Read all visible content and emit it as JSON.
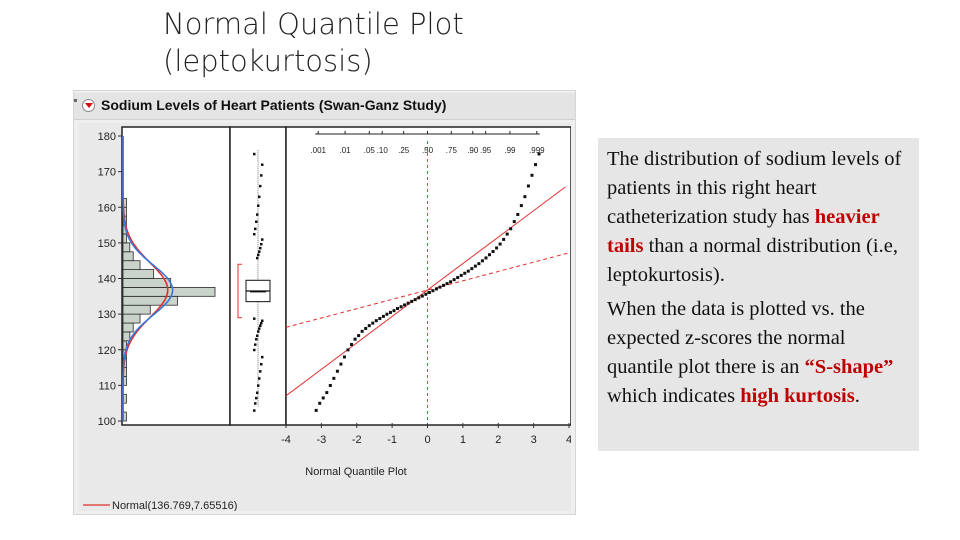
{
  "slide": {
    "title_line1": "Normal Quantile Plot",
    "title_line2": "(leptokurtosis)"
  },
  "window": {
    "title": "Sodium Levels of Heart Patients (Swan-Ganz Study)",
    "legend_label": "Normal(136.769,7.65516)",
    "legend_color": "#e03030"
  },
  "explanation": {
    "p1_text1": "The distribution of sodium levels of patients in this right heart catheterization study has ",
    "p1_highlight1": "heavier tails",
    "p1_text2": " than a normal distribution (i.e, leptokurtosis).",
    "p2_text1": "When the data is plotted vs. the expected z-scores the normal quantile plot there is an ",
    "p2_highlight1": "“S-shape”",
    "p2_text2": " which indicates ",
    "p2_highlight2": "high kurtosis",
    "p2_text3": ".",
    "highlight_color": "#c00000"
  },
  "chart_data": {
    "type": "scatter",
    "ylim": [
      100,
      180
    ],
    "yticks": [
      "100",
      "110",
      "120",
      "130",
      "140",
      "150",
      "160",
      "170",
      "180"
    ],
    "xlim": [
      -4,
      4
    ],
    "xticks": [
      "-4",
      "-3",
      "-2",
      "-1",
      "0",
      "1",
      "2",
      "3",
      "4"
    ],
    "xlabel": "Normal Quantile Plot",
    "prob_ticks": [
      ".001",
      ".01",
      ".05",
      ".10",
      ".25",
      ".50",
      ".75",
      ".90",
      ".95",
      ".99",
      ".999"
    ],
    "prob_z": [
      -3.09,
      -2.33,
      -1.645,
      -1.28,
      -0.674,
      0,
      0.674,
      1.28,
      1.645,
      2.33,
      3.09
    ],
    "normal_fit": {
      "mean": 136.769,
      "sd": 7.65516
    },
    "histogram": {
      "bin_width": 2.5,
      "bins": [
        {
          "low": 100,
          "count": 1
        },
        {
          "low": 102.5,
          "count": 0
        },
        {
          "low": 105,
          "count": 1
        },
        {
          "low": 107.5,
          "count": 0
        },
        {
          "low": 110,
          "count": 1
        },
        {
          "low": 112.5,
          "count": 1
        },
        {
          "low": 115,
          "count": 1
        },
        {
          "low": 117.5,
          "count": 1
        },
        {
          "low": 120,
          "count": 1
        },
        {
          "low": 122.5,
          "count": 2
        },
        {
          "low": 125,
          "count": 3
        },
        {
          "low": 127.5,
          "count": 5
        },
        {
          "low": 130,
          "count": 8
        },
        {
          "low": 132.5,
          "count": 16
        },
        {
          "low": 135,
          "count": 27
        },
        {
          "low": 137.5,
          "count": 14
        },
        {
          "low": 140,
          "count": 9
        },
        {
          "low": 142.5,
          "count": 5
        },
        {
          "low": 145,
          "count": 3
        },
        {
          "low": 147.5,
          "count": 2
        },
        {
          "low": 150,
          "count": 1
        },
        {
          "low": 152.5,
          "count": 1
        },
        {
          "low": 155,
          "count": 1
        },
        {
          "low": 157.5,
          "count": 1
        },
        {
          "low": 160,
          "count": 1
        }
      ]
    },
    "boxplot": {
      "q1": 133.5,
      "median": 136.5,
      "q3": 139.5,
      "mean": 136.8,
      "shortest_half": [
        129,
        144
      ]
    },
    "series": [
      {
        "points": [
          [
            -3.15,
            103
          ],
          [
            -3.05,
            105
          ],
          [
            -2.95,
            106.5
          ],
          [
            -2.85,
            108
          ],
          [
            -2.75,
            110
          ],
          [
            -2.65,
            112
          ],
          [
            -2.55,
            114
          ],
          [
            -2.45,
            116
          ],
          [
            -2.35,
            118
          ],
          [
            -2.25,
            120
          ],
          [
            -2.15,
            121.5
          ],
          [
            -2.05,
            123
          ],
          [
            -1.95,
            124
          ],
          [
            -1.85,
            125.2
          ],
          [
            -1.75,
            126
          ],
          [
            -1.65,
            126.8
          ],
          [
            -1.55,
            127.5
          ],
          [
            -1.45,
            128.2
          ],
          [
            -1.35,
            128.8
          ],
          [
            -1.25,
            129.4
          ],
          [
            -1.15,
            130
          ],
          [
            -1.05,
            130.5
          ],
          [
            -0.95,
            131
          ],
          [
            -0.85,
            131.6
          ],
          [
            -0.75,
            132.1
          ],
          [
            -0.65,
            132.6
          ],
          [
            -0.55,
            133.1
          ],
          [
            -0.45,
            133.6
          ],
          [
            -0.35,
            134.1
          ],
          [
            -0.25,
            134.6
          ],
          [
            -0.15,
            135.1
          ],
          [
            -0.05,
            135.6
          ],
          [
            0.05,
            136.1
          ],
          [
            0.15,
            136.6
          ],
          [
            0.25,
            137.1
          ],
          [
            0.35,
            137.6
          ],
          [
            0.45,
            138.1
          ],
          [
            0.55,
            138.6
          ],
          [
            0.65,
            139.1
          ],
          [
            0.75,
            139.7
          ],
          [
            0.85,
            140.3
          ],
          [
            0.95,
            140.9
          ],
          [
            1.05,
            141.5
          ],
          [
            1.15,
            142.1
          ],
          [
            1.25,
            142.8
          ],
          [
            1.35,
            143.5
          ],
          [
            1.45,
            144.2
          ],
          [
            1.55,
            145
          ],
          [
            1.65,
            145.8
          ],
          [
            1.75,
            146.7
          ],
          [
            1.85,
            147.6
          ],
          [
            1.95,
            148.6
          ],
          [
            2.05,
            149.7
          ],
          [
            2.15,
            151
          ],
          [
            2.25,
            152.5
          ],
          [
            2.35,
            154
          ],
          [
            2.45,
            156
          ],
          [
            2.55,
            158
          ],
          [
            2.65,
            160.5
          ],
          [
            2.75,
            163
          ],
          [
            2.85,
            166
          ],
          [
            2.95,
            169
          ],
          [
            3.05,
            172
          ],
          [
            3.15,
            175
          ]
        ]
      }
    ]
  }
}
